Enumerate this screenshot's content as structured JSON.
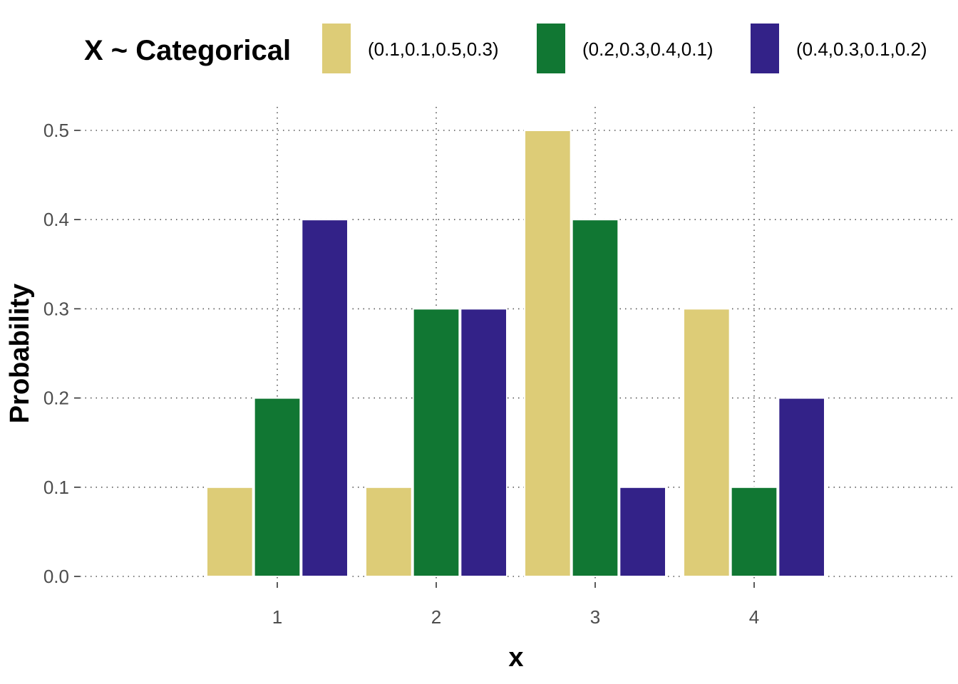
{
  "chart_data": {
    "type": "bar",
    "categories": [
      "1",
      "2",
      "3",
      "4"
    ],
    "series": [
      {
        "name": "(0.1,0.1,0.5,0.3)",
        "values": [
          0.1,
          0.1,
          0.5,
          0.3
        ],
        "color": "#DDCC77"
      },
      {
        "name": "(0.2,0.3,0.4,0.1)",
        "values": [
          0.2,
          0.3,
          0.4,
          0.1
        ],
        "color": "#117733"
      },
      {
        "name": "(0.4,0.3,0.1,0.2)",
        "values": [
          0.4,
          0.3,
          0.1,
          0.2
        ],
        "color": "#332288"
      }
    ],
    "legend_title": "X ~ Categorical",
    "legend_position": "top",
    "xlabel": "x",
    "ylabel": "Probability",
    "ylim": [
      0,
      0.5
    ],
    "y_ticks": [
      "0.0",
      "0.1",
      "0.2",
      "0.3",
      "0.4",
      "0.5"
    ],
    "grid": true
  }
}
